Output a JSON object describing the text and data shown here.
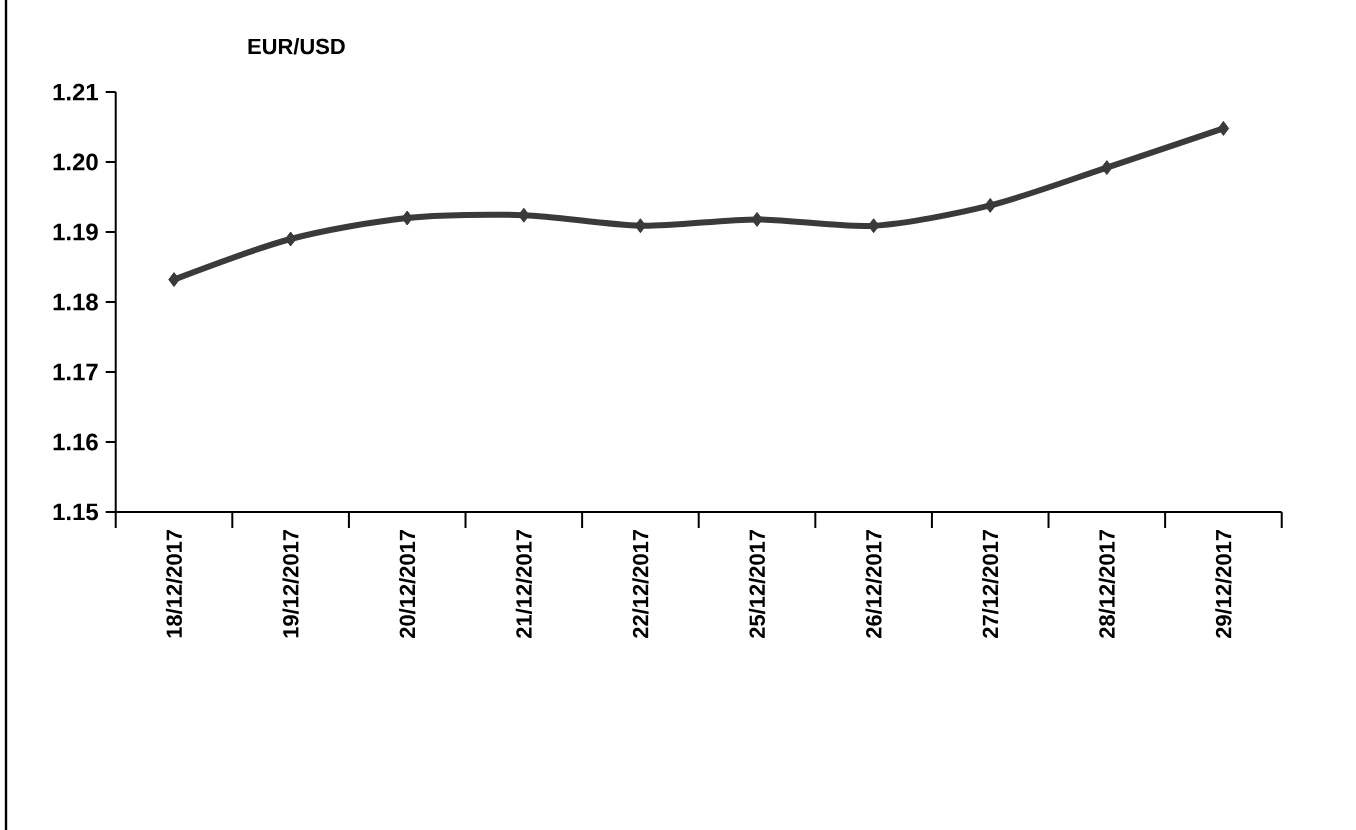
{
  "chart_data": {
    "type": "line",
    "title": "EUR/USD",
    "categories": [
      "18/12/2017",
      "19/12/2017",
      "20/12/2017",
      "21/12/2017",
      "22/12/2017",
      "25/12/2017",
      "26/12/2017",
      "27/12/2017",
      "28/12/2017",
      "29/12/2017"
    ],
    "series": [
      {
        "color": "#3a3a3a",
        "values": [
          1.1832,
          1.189,
          1.192,
          1.1924,
          1.1909,
          1.1918,
          1.1909,
          1.1938,
          1.1992,
          1.2048
        ]
      }
    ],
    "ylim": [
      1.15,
      1.21
    ],
    "yticks": [
      1.15,
      1.16,
      1.17,
      1.18,
      1.19,
      {
        "value": 1.2,
        "label": "1.20"
      },
      1.21
    ],
    "grid": false,
    "marker": "diamond",
    "line_style": "solid"
  }
}
